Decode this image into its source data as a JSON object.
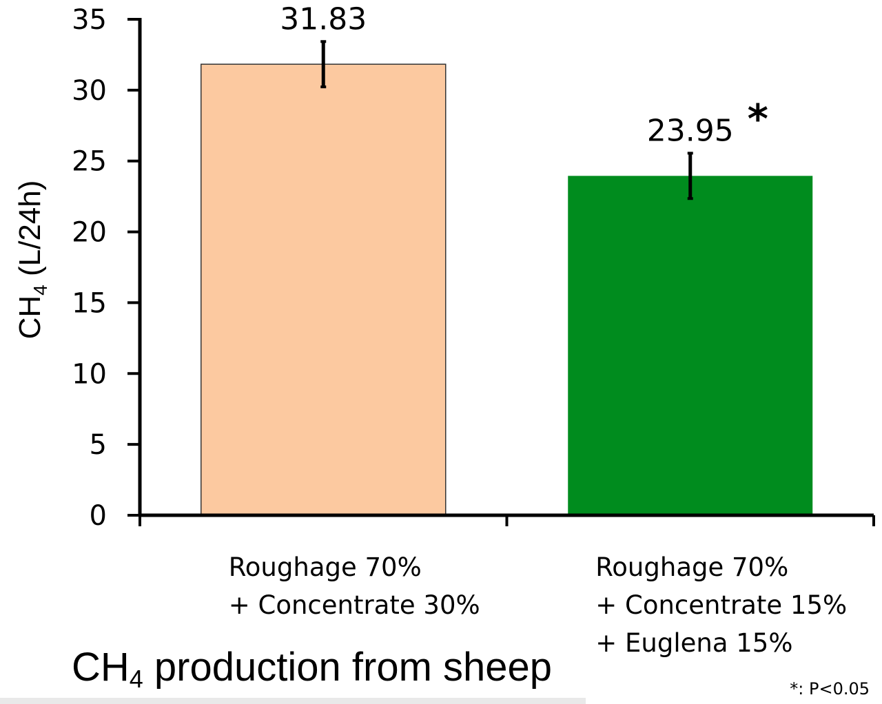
{
  "chart_data": {
    "type": "bar",
    "categories": [
      [
        "Roughage 70%",
        "+ Concentrate 30%"
      ],
      [
        "Roughage 70%",
        "+ Concentrate 15%",
        "+ Euglena 15%"
      ]
    ],
    "values": [
      31.83,
      23.95
    ],
    "value_labels": [
      "31.83",
      "23.95"
    ],
    "error": [
      1.6,
      1.6
    ],
    "significance": [
      "",
      "*"
    ],
    "colors": [
      "#FCC9A0",
      "#008C1E"
    ],
    "ylabel_main": "CH",
    "ylabel_sub": "4",
    "ylabel_rest": " (L/24h)",
    "ylim": [
      0,
      35
    ],
    "yticks": [
      0,
      5,
      10,
      15,
      20,
      25,
      30,
      35
    ],
    "grid": false
  },
  "title": {
    "main": "CH",
    "sub": "4",
    "rest": " production from sheep"
  },
  "footnote": "*: P<0.05"
}
